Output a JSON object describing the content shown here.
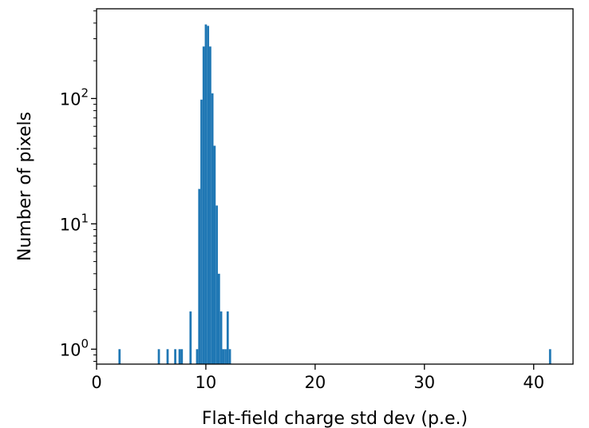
{
  "chart_data": {
    "type": "bar",
    "title": "",
    "xlabel": "Flat-field charge std dev (p.e.)",
    "ylabel": "Number of pixels",
    "xlim": [
      0,
      43.6
    ],
    "ylim": [
      0.76,
      520
    ],
    "yscale": "log",
    "bar_color": "#1f77b4",
    "bin_width": 0.2,
    "x_ticks": [
      {
        "value": 0,
        "label": "0"
      },
      {
        "value": 10,
        "label": "10"
      },
      {
        "value": 20,
        "label": "20"
      },
      {
        "value": 30,
        "label": "30"
      },
      {
        "value": 40,
        "label": "40"
      }
    ],
    "y_ticks": [
      {
        "value": 1,
        "base": "10",
        "exp": "0"
      },
      {
        "value": 10,
        "base": "10",
        "exp": "1"
      },
      {
        "value": 100,
        "base": "10",
        "exp": "2"
      }
    ],
    "bins": [
      {
        "x": 2.0,
        "count": 1
      },
      {
        "x": 5.6,
        "count": 1
      },
      {
        "x": 6.4,
        "count": 1
      },
      {
        "x": 7.1,
        "count": 1
      },
      {
        "x": 7.5,
        "count": 1
      },
      {
        "x": 7.7,
        "count": 1
      },
      {
        "x": 8.5,
        "count": 2
      },
      {
        "x": 9.1,
        "count": 1
      },
      {
        "x": 9.3,
        "count": 19
      },
      {
        "x": 9.5,
        "count": 98
      },
      {
        "x": 9.7,
        "count": 260
      },
      {
        "x": 9.9,
        "count": 390
      },
      {
        "x": 10.1,
        "count": 380
      },
      {
        "x": 10.3,
        "count": 260
      },
      {
        "x": 10.5,
        "count": 110
      },
      {
        "x": 10.7,
        "count": 42
      },
      {
        "x": 10.9,
        "count": 14
      },
      {
        "x": 11.1,
        "count": 4
      },
      {
        "x": 11.3,
        "count": 2
      },
      {
        "x": 11.5,
        "count": 1
      },
      {
        "x": 11.7,
        "count": 1
      },
      {
        "x": 11.9,
        "count": 2
      },
      {
        "x": 12.1,
        "count": 1
      },
      {
        "x": 41.4,
        "count": 1
      }
    ],
    "grid": false,
    "legend": "none"
  }
}
